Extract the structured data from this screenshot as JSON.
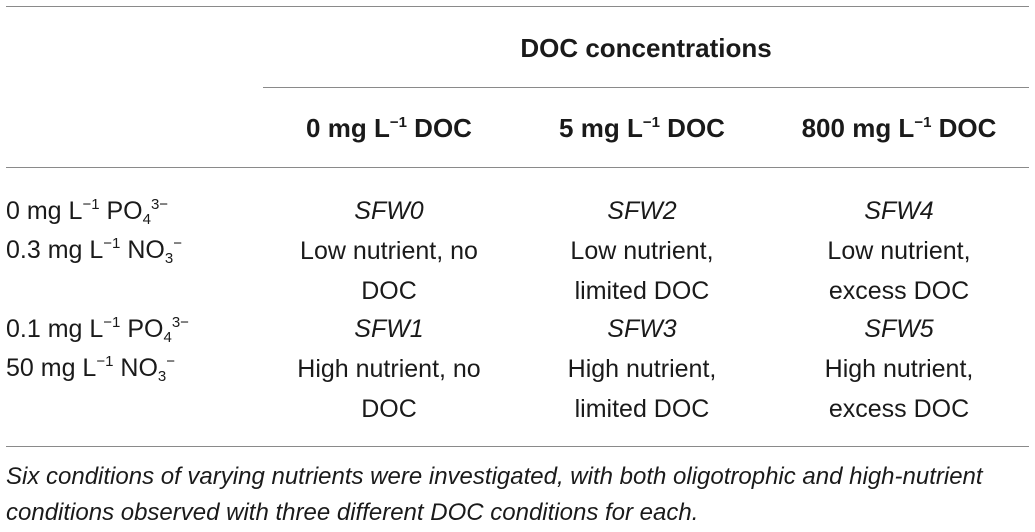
{
  "table": {
    "group_header": "DOC concentrations",
    "columns": [
      {
        "num": "0",
        "unit": "mg L",
        "exp": "−1",
        "suffix": " DOC"
      },
      {
        "num": "5",
        "unit": "mg L",
        "exp": "−1",
        "suffix": " DOC"
      },
      {
        "num": "800",
        "unit": "mg L",
        "exp": "−1",
        "suffix": " DOC"
      }
    ],
    "rows": [
      {
        "label_line1": {
          "pre": "0 mg L",
          "exp": "−1",
          "mid": " PO",
          "sub": "4",
          "sup": "3−"
        },
        "label_line2": {
          "pre": "0.3 mg L",
          "exp": "−1",
          "mid": " NO",
          "sub": "3",
          "sup": "−"
        },
        "cells": [
          {
            "code": "SFW0",
            "desc_line1": "Low nutrient, no",
            "desc_line2": "DOC"
          },
          {
            "code": "SFW2",
            "desc_line1": "Low nutrient,",
            "desc_line2": "limited DOC"
          },
          {
            "code": "SFW4",
            "desc_line1": "Low nutrient,",
            "desc_line2": "excess DOC"
          }
        ]
      },
      {
        "label_line1": {
          "pre": "0.1 mg L",
          "exp": "−1",
          "mid": " PO",
          "sub": "4",
          "sup": "3−"
        },
        "label_line2": {
          "pre": "50 mg L",
          "exp": "−1",
          "mid": " NO",
          "sub": "3",
          "sup": "−"
        },
        "cells": [
          {
            "code": "SFW1",
            "desc_line1": "High nutrient, no",
            "desc_line2": "DOC"
          },
          {
            "code": "SFW3",
            "desc_line1": "High nutrient,",
            "desc_line2": "limited DOC"
          },
          {
            "code": "SFW5",
            "desc_line1": "High nutrient,",
            "desc_line2": "excess DOC"
          }
        ]
      }
    ],
    "footnote": "Six conditions of varying nutrients were investigated, with both oligotrophic and high-nutrient conditions observed with three different DOC conditions for each."
  }
}
